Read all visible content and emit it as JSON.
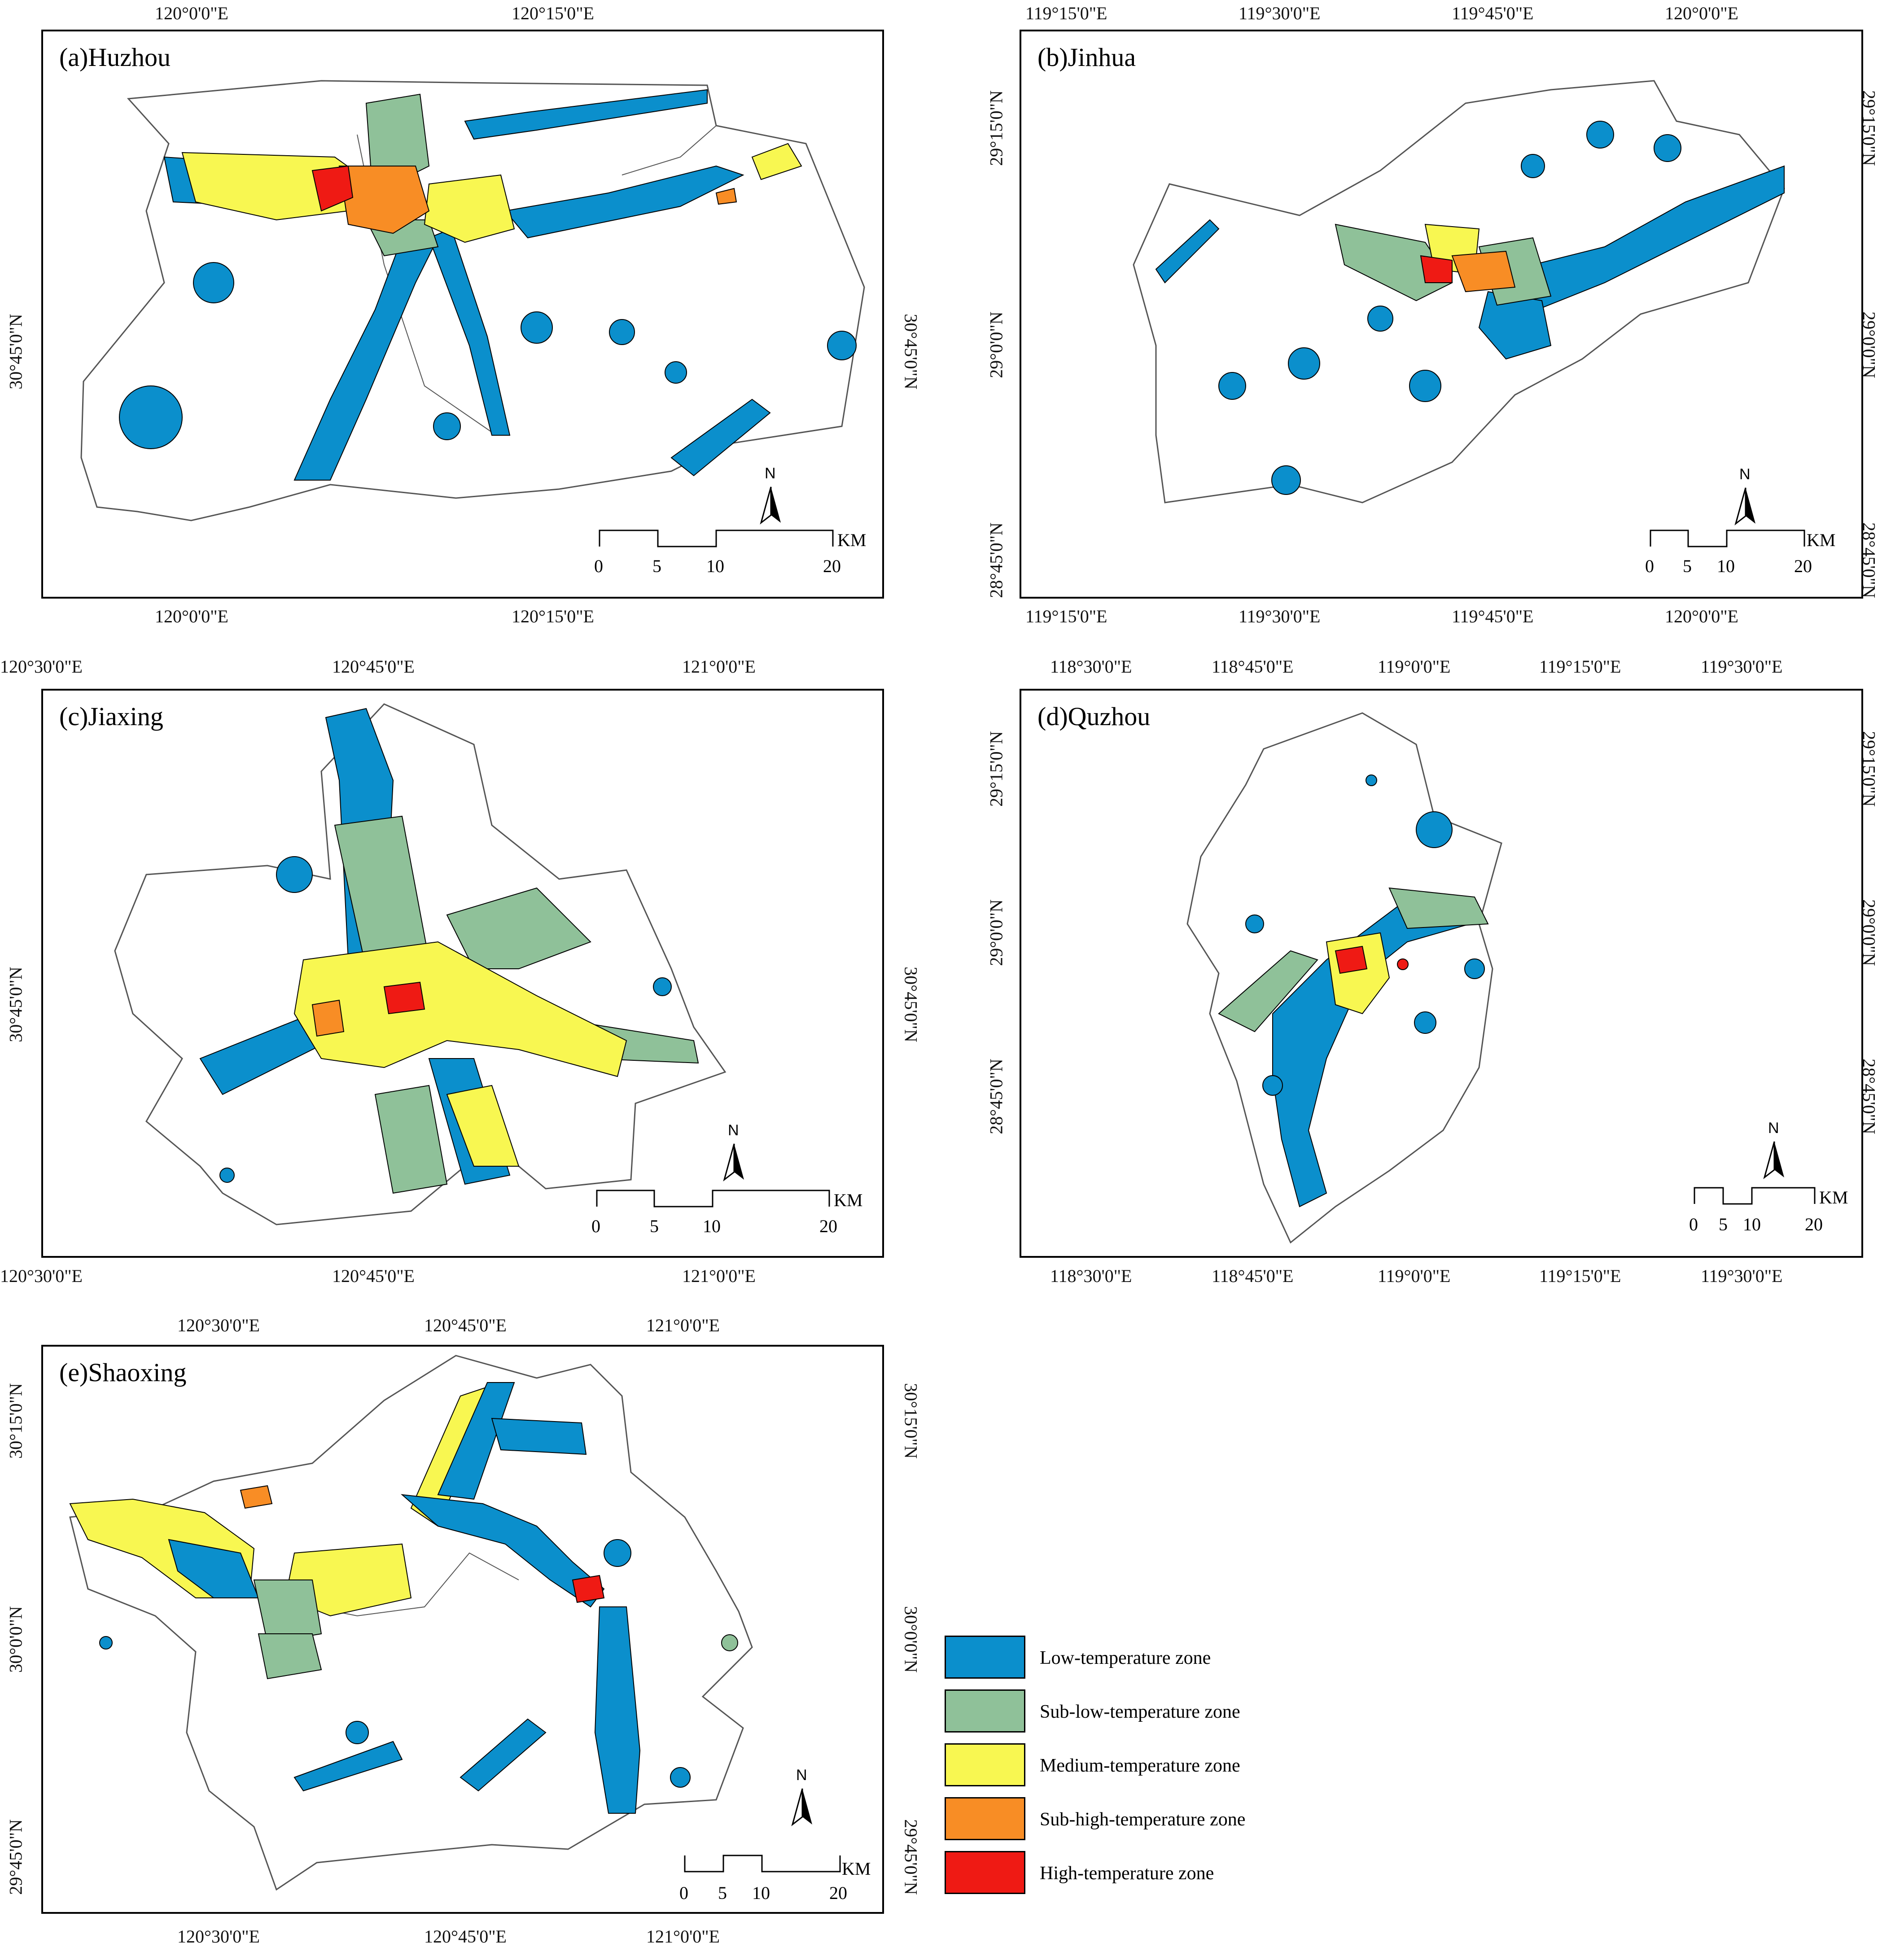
{
  "colors": {
    "low": "#0b8fcc",
    "sub_low": "#8fc199",
    "medium": "#f8f751",
    "sub_high": "#f88d25",
    "high": "#ef1a14"
  },
  "panels": {
    "a": {
      "title": "(a)Huzhou",
      "top_ticks": [
        "120°0'0\"E",
        "120°15'0\"E"
      ],
      "bottom_ticks": [
        "120°0'0\"E",
        "120°15'0\"E"
      ],
      "left_ticks": [
        "30°45'0\"N"
      ],
      "right_ticks": [
        "30°45'0\"N"
      ],
      "scale": {
        "labels": [
          "0",
          "5",
          "10",
          "20"
        ],
        "unit": "KM"
      },
      "north": "N"
    },
    "b": {
      "title": "(b)Jinhua",
      "top_ticks": [
        "119°15'0\"E",
        "119°30'0\"E",
        "119°45'0\"E",
        "120°0'0\"E"
      ],
      "bottom_ticks": [
        "119°15'0\"E",
        "119°30'0\"E",
        "119°45'0\"E",
        "120°0'0\"E"
      ],
      "left_ticks": [
        "29°15'0\"N",
        "29°0'0\"N",
        "28°45'0\"N"
      ],
      "right_ticks": [
        "29°15'0\"N",
        "29°0'0\"N",
        "28°45'0\"N"
      ],
      "scale": {
        "labels": [
          "0",
          "5",
          "10",
          "20"
        ],
        "unit": "KM"
      },
      "north": "N"
    },
    "c": {
      "title": "(c)Jiaxing",
      "top_ticks": [
        "120°30'0\"E",
        "120°45'0\"E",
        "121°0'0\"E"
      ],
      "bottom_ticks": [
        "120°30'0\"E",
        "120°45'0\"E",
        "121°0'0\"E"
      ],
      "left_ticks": [
        "30°45'0\"N"
      ],
      "right_ticks": [
        "30°45'0\"N"
      ],
      "scale": {
        "labels": [
          "0",
          "5",
          "10",
          "20"
        ],
        "unit": "KM"
      },
      "north": "N"
    },
    "d": {
      "title": "(d)Quzhou",
      "top_ticks": [
        "118°30'0\"E",
        "118°45'0\"E",
        "119°0'0\"E",
        "119°15'0\"E",
        "119°30'0\"E"
      ],
      "bottom_ticks": [
        "118°30'0\"E",
        "118°45'0\"E",
        "119°0'0\"E",
        "119°15'0\"E",
        "119°30'0\"E"
      ],
      "left_ticks": [
        "29°15'0\"N",
        "29°0'0\"N",
        "28°45'0\"N"
      ],
      "right_ticks": [
        "29°15'0\"N",
        "29°0'0\"N",
        "28°45'0\"N"
      ],
      "scale": {
        "labels": [
          "0",
          "5",
          "10",
          "20"
        ],
        "unit": "KM"
      },
      "north": "N"
    },
    "e": {
      "title": "(e)Shaoxing",
      "top_ticks": [
        "120°30'0\"E",
        "120°45'0\"E",
        "121°0'0\"E"
      ],
      "bottom_ticks": [
        "120°30'0\"E",
        "120°45'0\"E",
        "121°0'0\"E"
      ],
      "left_ticks": [
        "30°15'0\"N",
        "30°0'0\"N",
        "29°45'0\"N"
      ],
      "right_ticks": [
        "30°15'0\"N",
        "30°0'0\"N",
        "29°45'0\"N"
      ],
      "scale": {
        "labels": [
          "0",
          "5",
          "10",
          "20"
        ],
        "unit": "KM"
      },
      "north": "N"
    }
  },
  "legend": [
    {
      "key": "low",
      "label": "Low-temperature zone"
    },
    {
      "key": "sub_low",
      "label": "Sub-low-temperature zone"
    },
    {
      "key": "medium",
      "label": "Medium-temperature zone"
    },
    {
      "key": "sub_high",
      "label": "Sub-high-temperature zone"
    },
    {
      "key": "high",
      "label": "High-temperature zone"
    }
  ]
}
